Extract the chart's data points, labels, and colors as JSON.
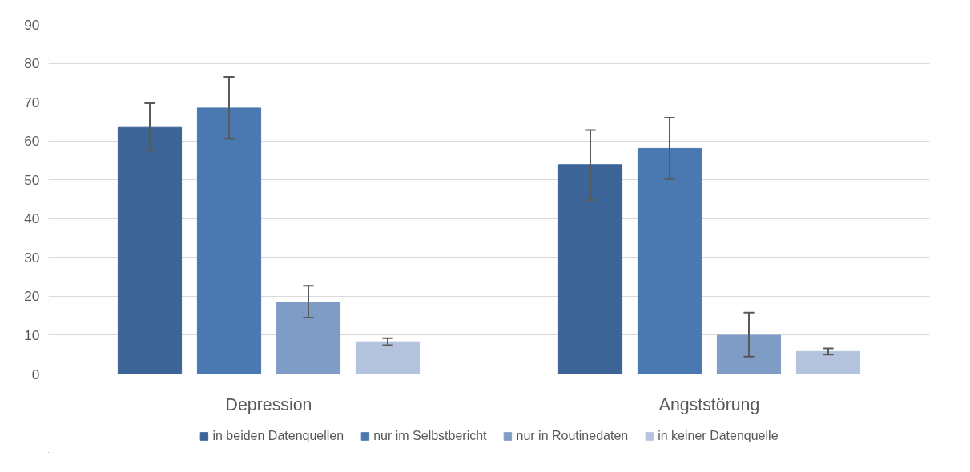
{
  "chart_data": {
    "type": "bar",
    "categories": [
      "Depression",
      "Angststörung"
    ],
    "series": [
      {
        "name": "in beiden Datenquellen",
        "color": "#3c6496",
        "values": [
          63.5,
          53.9
        ],
        "errors": [
          [
            57.6,
            69.7
          ],
          [
            44.8,
            62.8
          ]
        ]
      },
      {
        "name": "nur im Selbstbericht",
        "color": "#4a78b0",
        "values": [
          68.5,
          58.1
        ],
        "errors": [
          [
            60.6,
            76.5
          ],
          [
            50.2,
            66.0
          ]
        ]
      },
      {
        "name": "nur in Routinedaten",
        "color": "#7f9cc7",
        "values": [
          18.5,
          10.0
        ],
        "errors": [
          [
            14.5,
            22.7
          ],
          [
            4.5,
            15.8
          ]
        ]
      },
      {
        "name": "in keiner Datenquelle",
        "color": "#b4c3de",
        "values": [
          8.3,
          5.8
        ],
        "errors": [
          [
            7.4,
            9.2
          ],
          [
            5.0,
            6.6
          ]
        ]
      }
    ],
    "ylim": [
      0,
      90
    ],
    "yticks": [
      0,
      10,
      20,
      30,
      40,
      50,
      60,
      70,
      80,
      90
    ],
    "grid": "y",
    "legend": "bottom"
  }
}
